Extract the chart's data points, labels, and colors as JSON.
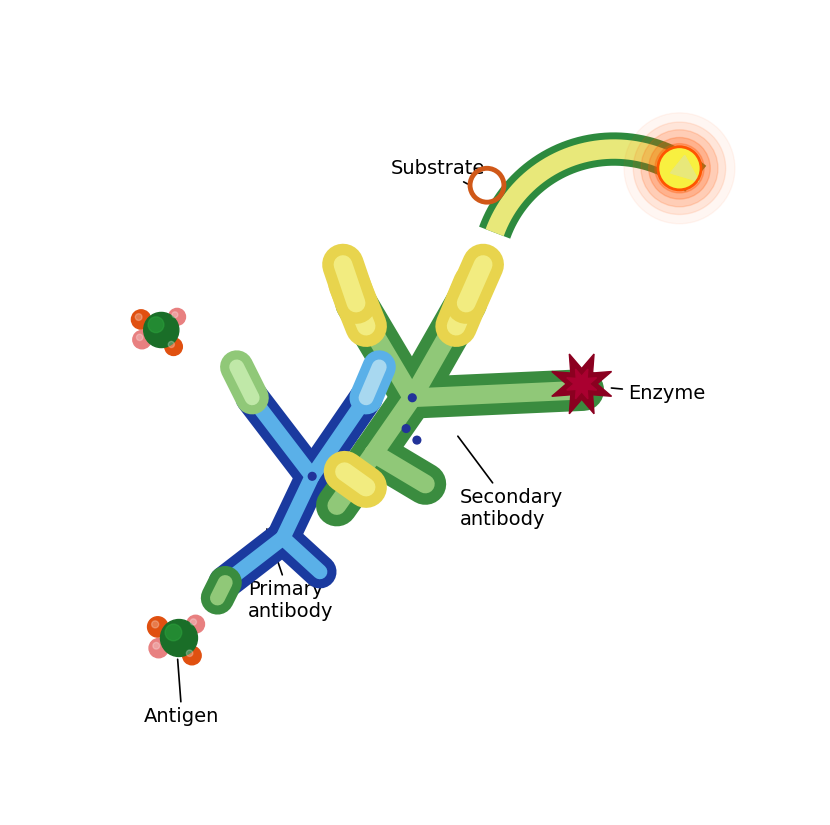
{
  "bg_color": "#ffffff",
  "colors": {
    "dark_green": "#3a8c3f",
    "light_green": "#90c878",
    "dark_blue": "#1a3a9f",
    "med_blue": "#2255cc",
    "light_blue": "#5ab0e8",
    "yellow": "#e8d44d",
    "light_yellow": "#f2ec80",
    "dark_yellow": "#c8b030",
    "red_dark": "#8b0020",
    "red_mid": "#aa0030",
    "orange": "#e05010",
    "pink": "#e88080",
    "antigen_green": "#1a6e28",
    "antigen_green_hl": "#2a9e3a",
    "arrow_green": "#2d8a3e",
    "arrow_yellow_fill": "#e8e87a",
    "substrate_orange": "#d05818",
    "glow_orange": "#ff5500",
    "product_yellow": "#f8f040",
    "blue_dot": "#223399"
  },
  "labels": {
    "antigen": "Antigen",
    "primary": "Primary\nantibody",
    "secondary": "Secondary\nantibody",
    "enzyme": "Enzyme",
    "substrate": "Substrate"
  }
}
